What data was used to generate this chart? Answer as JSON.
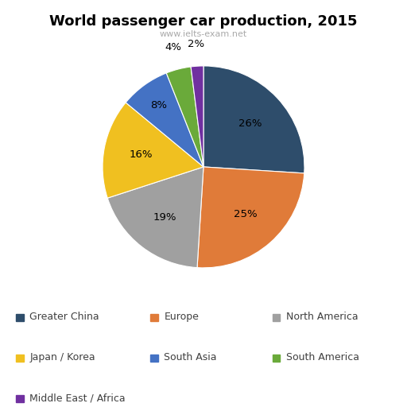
{
  "title": "World passenger car production, 2015",
  "subtitle": "www.ielts-exam.net",
  "labels": [
    "Greater China",
    "Europe",
    "North America",
    "Japan / Korea",
    "South Asia",
    "South America",
    "Middle East / Africa"
  ],
  "values": [
    26,
    25,
    19,
    16,
    8,
    4,
    2
  ],
  "colors": [
    "#2e4d6b",
    "#e07b39",
    "#a0a0a0",
    "#f0c020",
    "#4472c4",
    "#6aaa3a",
    "#7030a0"
  ],
  "pct_labels": [
    "26%",
    "25%",
    "19%",
    "16%",
    "8%",
    "4%",
    "2%"
  ],
  "background_color": "#ffffff",
  "legend_labels_row1": [
    "Greater China",
    "Europe",
    "North America"
  ],
  "legend_labels_row2": [
    "Japan / Korea",
    "South Asia",
    "South America"
  ],
  "legend_labels_row3": [
    "Middle East / Africa"
  ]
}
